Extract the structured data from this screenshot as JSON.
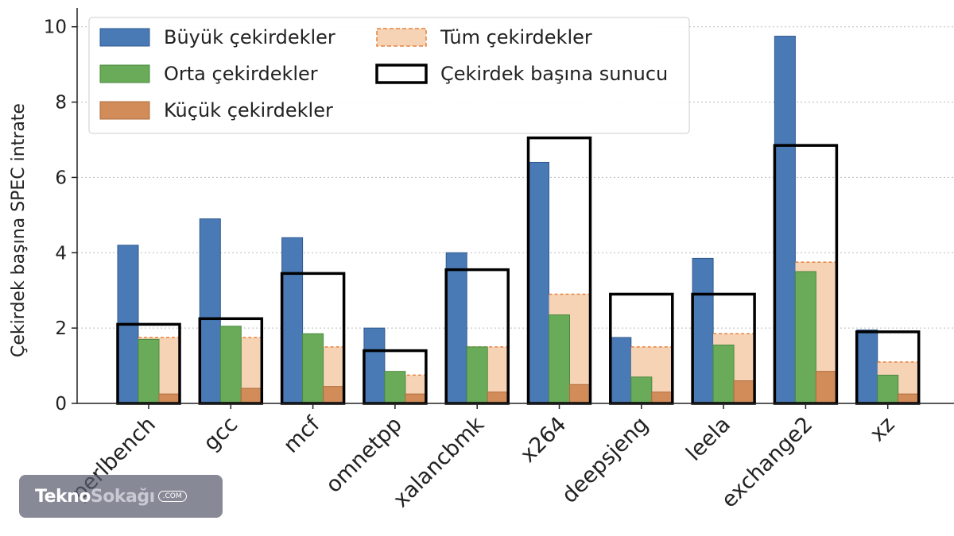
{
  "chart_data": {
    "type": "bar",
    "ylabel": "Çekirdek başına SPEC intrate",
    "xlabel": "",
    "ylim": [
      0,
      10.5
    ],
    "yticks": [
      0,
      2,
      4,
      6,
      8,
      10
    ],
    "grid": "horizontal dotted",
    "legend_placement": "top-left",
    "categories": [
      "perlbench",
      "gcc",
      "mcf",
      "omnetpp",
      "xalancbmk",
      "x264",
      "deepsjeng",
      "leela",
      "exchange2",
      "xz"
    ],
    "series": [
      {
        "name": "Büyük çekirdekler",
        "color": "#4a7ab5",
        "values": [
          4.2,
          4.9,
          4.4,
          2.0,
          4.0,
          6.4,
          1.75,
          3.85,
          9.75,
          1.95
        ]
      },
      {
        "name": "Orta çekirdekler",
        "color": "#6aab5a",
        "values": [
          1.7,
          2.05,
          1.85,
          0.85,
          1.5,
          2.35,
          0.7,
          1.55,
          3.5,
          0.75
        ]
      },
      {
        "name": "Küçük çekirdekler",
        "color": "#d18c5a",
        "values": [
          0.25,
          0.4,
          0.45,
          0.25,
          0.3,
          0.5,
          0.3,
          0.6,
          0.85,
          0.25
        ]
      },
      {
        "name": "Tüm çekirdekler",
        "color": "#f6d3b5",
        "edge_color": "#e8823c",
        "values": [
          1.75,
          1.75,
          1.5,
          0.75,
          1.5,
          2.9,
          1.5,
          1.85,
          3.75,
          1.1
        ]
      },
      {
        "name": "Çekirdek başına sunucu",
        "color": "#000000",
        "values": [
          2.1,
          2.25,
          3.45,
          1.4,
          3.55,
          7.05,
          2.9,
          2.9,
          6.85,
          1.9
        ]
      }
    ]
  },
  "watermark": {
    "brand_part1": "Tekno",
    "brand_part2": "Sokağı",
    "domain": ".COM"
  }
}
